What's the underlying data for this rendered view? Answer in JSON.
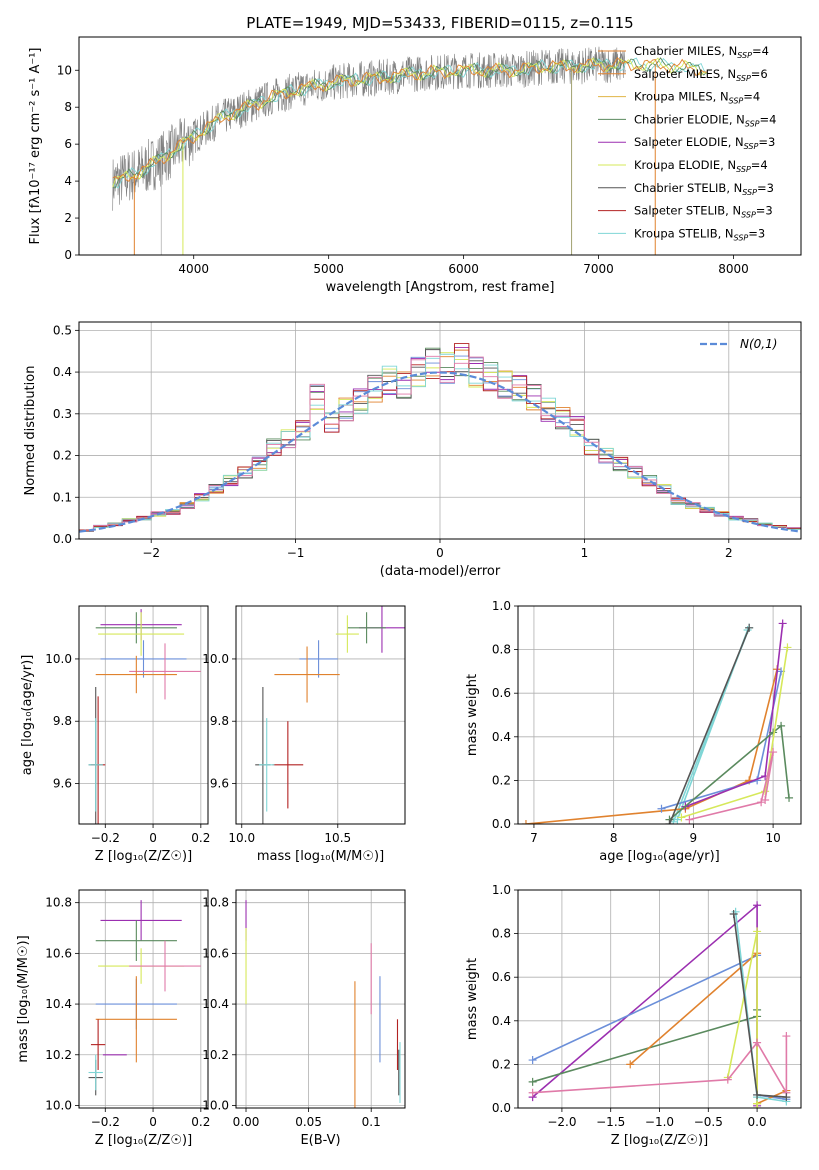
{
  "title": "PLATE=1949, MJD=53433, FIBERID=0115, z=0.115",
  "colors": {
    "Chabrier MILES": "#6b8fd9",
    "Salpeter MILES": "#e0822e",
    "Kroupa MILES": "#e0b446",
    "Chabrier ELODIE": "#5a8a5e",
    "Salpeter ELODIE": "#9b2fb0",
    "Kroupa ELODIE": "#d6e85a",
    "Chabrier STELIB": "#555555",
    "Salpeter STELIB": "#b22222",
    "Kroupa STELIB": "#7fd6d6",
    "Pink": "#e07aa8",
    "Data": "#808080"
  },
  "chart_data": [
    {
      "type": "line",
      "id": "spectrum",
      "title": "PLATE=1949, MJD=53433, FIBERID=0115, z=0.115",
      "xlabel": "wavelength [Angstrom, rest frame]",
      "ylabel": "Flux [fλ10⁻¹⁷ erg cm⁻² s⁻¹ A⁻¹]",
      "xlim": [
        3150,
        8500
      ],
      "ylim": [
        0,
        11.8
      ],
      "xticks": [
        4000,
        5000,
        6000,
        7000,
        8000
      ],
      "yticks": [
        0,
        2,
        4,
        6,
        8,
        10
      ],
      "legend": "top-right",
      "series": [
        {
          "name": "Chabrier MILES, N_SSP=4",
          "n": "4"
        },
        {
          "name": "Salpeter MILES, N_SSP=6",
          "n": "6"
        },
        {
          "name": "Kroupa MILES, N_SSP=4",
          "n": "4"
        },
        {
          "name": "Chabrier ELODIE, N_SSP=4",
          "n": "4"
        },
        {
          "name": "Salpeter ELODIE, N_SSP=3",
          "n": "3"
        },
        {
          "name": "Kroupa ELODIE, N_SSP=4",
          "n": "4"
        },
        {
          "name": "Chabrier STELIB, N_SSP=3",
          "n": "3"
        },
        {
          "name": "Salpeter STELIB, N_SSP=3",
          "n": "3"
        },
        {
          "name": "Kroupa STELIB, N_SSP=3",
          "n": "3"
        }
      ],
      "continuum": {
        "x": [
          3400,
          3600,
          3800,
          4000,
          4200,
          4400,
          4600,
          4800,
          5000,
          5200,
          5400,
          5600,
          5800,
          6000,
          6200,
          6400,
          6600,
          6800,
          7000,
          7200,
          7400,
          7600,
          7800
        ],
        "y": [
          3.9,
          4.5,
          5.4,
          6.4,
          7.4,
          8.0,
          8.6,
          9.0,
          9.3,
          9.5,
          9.6,
          9.8,
          9.9,
          10.0,
          10.0,
          10.0,
          10.2,
          10.2,
          10.3,
          10.3,
          10.3,
          10.2,
          10.0
        ]
      }
    },
    {
      "type": "line",
      "id": "residuals",
      "xlabel": "(data-model)/error",
      "ylabel": "Normed distribution",
      "xlim": [
        -2.5,
        2.5
      ],
      "ylim": [
        0,
        0.52
      ],
      "xticks": [
        -2,
        -1,
        0,
        1,
        2
      ],
      "yticks": [
        0.0,
        0.1,
        0.2,
        0.3,
        0.4,
        0.5
      ],
      "legend": "top-right",
      "legend_label": "N(0,1)",
      "hist_bins_center": [
        -2.45,
        -2.35,
        -2.25,
        -2.15,
        -2.05,
        -1.95,
        -1.85,
        -1.75,
        -1.65,
        -1.55,
        -1.45,
        -1.35,
        -1.25,
        -1.15,
        -1.05,
        -0.95,
        -0.85,
        -0.75,
        -0.65,
        -0.55,
        -0.45,
        -0.35,
        -0.25,
        -0.15,
        -0.05,
        0.05,
        0.15,
        0.25,
        0.35,
        0.45,
        0.55,
        0.65,
        0.75,
        0.85,
        0.95,
        1.05,
        1.15,
        1.25,
        1.35,
        1.45,
        1.55,
        1.65,
        1.75,
        1.85,
        1.95,
        2.05,
        2.15,
        2.25,
        2.35,
        2.45
      ],
      "hist_values": [
        0.02,
        0.03,
        0.035,
        0.045,
        0.05,
        0.06,
        0.065,
        0.08,
        0.1,
        0.12,
        0.14,
        0.16,
        0.18,
        0.22,
        0.24,
        0.26,
        0.34,
        0.28,
        0.31,
        0.33,
        0.36,
        0.38,
        0.37,
        0.4,
        0.42,
        0.41,
        0.43,
        0.4,
        0.39,
        0.37,
        0.36,
        0.34,
        0.31,
        0.29,
        0.27,
        0.22,
        0.2,
        0.18,
        0.16,
        0.14,
        0.12,
        0.09,
        0.08,
        0.07,
        0.06,
        0.05,
        0.045,
        0.035,
        0.03,
        0.025
      ]
    },
    {
      "type": "scatter",
      "id": "age-Z",
      "xlabel": "Z [log₁₀(Z/Z☉)]",
      "ylabel": "age  [log₁₀(age/yr)]",
      "xlim": [
        -0.31,
        0.23
      ],
      "ylim": [
        9.47,
        10.17
      ],
      "xticks": [
        -0.2,
        0.0,
        0.2
      ],
      "yticks": [
        9.6,
        9.8,
        10.0
      ],
      "errorbars": [
        {
          "x": -0.05,
          "y": 10.11,
          "xerr": 0.17,
          "yerr": 0.05,
          "color": "Salpeter ELODIE"
        },
        {
          "x": -0.07,
          "y": 10.1,
          "xerr": 0.17,
          "yerr": 0.05,
          "color": "Chabrier ELODIE"
        },
        {
          "x": -0.05,
          "y": 10.08,
          "xerr": 0.18,
          "yerr": 0.07,
          "color": "Kroupa ELODIE"
        },
        {
          "x": -0.04,
          "y": 10.0,
          "xerr": 0.18,
          "yerr": 0.06,
          "color": "Chabrier MILES"
        },
        {
          "x": 0.05,
          "y": 9.96,
          "xerr": 0.15,
          "yerr": 0.09,
          "color": "Pink"
        },
        {
          "x": -0.07,
          "y": 9.95,
          "xerr": 0.17,
          "yerr": 0.06,
          "color": "Salpeter MILES"
        },
        {
          "x": -0.24,
          "y": 9.66,
          "xerr": 0.03,
          "yerr": 0.25,
          "color": "Chabrier STELIB"
        },
        {
          "x": -0.23,
          "y": 9.66,
          "xerr": 0.03,
          "yerr": 0.22,
          "color": "Salpeter STELIB"
        },
        {
          "x": -0.24,
          "y": 9.66,
          "xerr": 0.03,
          "yerr": 0.15,
          "color": "Kroupa STELIB"
        }
      ]
    },
    {
      "type": "scatter",
      "id": "age-mass",
      "xlabel": "mass [log₁₀(M/M☉)]",
      "ylabel": "",
      "xlim": [
        9.97,
        10.85
      ],
      "ylim": [
        9.47,
        10.17
      ],
      "xticks": [
        10.0,
        10.5
      ],
      "yticks": [
        9.6,
        9.8,
        10.0
      ],
      "errorbars": [
        {
          "x": 10.73,
          "y": 10.1,
          "xerr": 0.12,
          "yerr": 0.08,
          "color": "Salpeter ELODIE"
        },
        {
          "x": 10.65,
          "y": 10.1,
          "xerr": 0.1,
          "yerr": 0.05,
          "color": "Chabrier ELODIE"
        },
        {
          "x": 10.55,
          "y": 10.08,
          "xerr": 0.06,
          "yerr": 0.06,
          "color": "Kroupa ELODIE"
        },
        {
          "x": 10.4,
          "y": 10.0,
          "xerr": 0.1,
          "yerr": 0.06,
          "color": "Chabrier MILES"
        },
        {
          "x": 10.34,
          "y": 9.95,
          "xerr": 0.17,
          "yerr": 0.09,
          "color": "Salpeter MILES"
        },
        {
          "x": 10.11,
          "y": 9.66,
          "xerr": 0.04,
          "yerr": 0.25,
          "color": "Chabrier STELIB"
        },
        {
          "x": 10.24,
          "y": 9.66,
          "xerr": 0.08,
          "yerr": 0.14,
          "color": "Salpeter STELIB"
        },
        {
          "x": 10.13,
          "y": 9.66,
          "xerr": 0.04,
          "yerr": 0.15,
          "color": "Kroupa STELIB"
        }
      ]
    },
    {
      "type": "line",
      "id": "weight-age",
      "xlabel": "age  [log₁₀(age/yr)]",
      "ylabel": "mass weight",
      "xlim": [
        6.8,
        10.35
      ],
      "ylim": [
        0,
        1.0
      ],
      "xticks": [
        7,
        8,
        9,
        10
      ],
      "yticks": [
        0.0,
        0.2,
        0.4,
        0.6,
        0.8,
        1.0
      ],
      "series": [
        {
          "color": "Kroupa STELIB",
          "x": [
            8.75,
            9.7,
            9.68,
            8.8
          ],
          "y": [
            0.01,
            0.9,
            0.89,
            0.02
          ]
        },
        {
          "color": "Salpeter MILES",
          "x": [
            6.9,
            8.9,
            9.7,
            10.05
          ],
          "y": [
            0.0,
            0.07,
            0.2,
            0.71
          ]
        },
        {
          "color": "Chabrier MILES",
          "x": [
            8.6,
            9.8,
            10.1
          ],
          "y": [
            0.07,
            0.2,
            0.7
          ]
        },
        {
          "color": "Salpeter ELODIE",
          "x": [
            8.9,
            9.9,
            10.12
          ],
          "y": [
            0.08,
            0.22,
            0.92
          ]
        },
        {
          "color": "Chabrier ELODIE",
          "x": [
            8.7,
            10.0,
            10.1,
            10.2
          ],
          "y": [
            0.02,
            0.42,
            0.45,
            0.12
          ]
        },
        {
          "color": "Kroupa ELODIE",
          "x": [
            8.85,
            9.9,
            10.18
          ],
          "y": [
            0.03,
            0.15,
            0.81
          ]
        },
        {
          "color": "Pink",
          "x": [
            8.95,
            9.85,
            10.0,
            9.9
          ],
          "y": [
            0.02,
            0.1,
            0.33,
            0.11
          ]
        },
        {
          "color": "Chabrier STELIB",
          "x": [
            8.7,
            9.7
          ],
          "y": [
            0.0,
            0.9
          ]
        }
      ]
    },
    {
      "type": "scatter",
      "id": "mass-Z",
      "xlabel": "Z [log₁₀(Z/Z☉)]",
      "ylabel": "mass [log₁₀(M/M☉)]",
      "xlim": [
        -0.31,
        0.23
      ],
      "ylim": [
        9.99,
        10.85
      ],
      "xticks": [
        -0.2,
        0.0,
        0.2
      ],
      "yticks": [
        10.0,
        10.2,
        10.4,
        10.6,
        10.8
      ],
      "errorbars": [
        {
          "x": -0.05,
          "y": 10.73,
          "xerr": 0.17,
          "yerr": 0.08,
          "color": "Salpeter ELODIE"
        },
        {
          "x": -0.07,
          "y": 10.65,
          "xerr": 0.17,
          "yerr": 0.08,
          "color": "Chabrier ELODIE"
        },
        {
          "x": -0.05,
          "y": 10.55,
          "xerr": 0.18,
          "yerr": 0.07,
          "color": "Kroupa ELODIE"
        },
        {
          "x": 0.05,
          "y": 10.55,
          "xerr": 0.15,
          "yerr": 0.1,
          "color": "Pink"
        },
        {
          "x": -0.07,
          "y": 10.4,
          "xerr": 0.17,
          "yerr": 0.1,
          "color": "Chabrier MILES"
        },
        {
          "x": -0.07,
          "y": 10.34,
          "xerr": 0.17,
          "yerr": 0.17,
          "color": "Salpeter MILES"
        },
        {
          "x": -0.23,
          "y": 10.24,
          "xerr": 0.03,
          "yerr": 0.1,
          "color": "Salpeter STELIB"
        },
        {
          "x": -0.24,
          "y": 10.11,
          "xerr": 0.03,
          "yerr": 0.07,
          "color": "Chabrier STELIB"
        },
        {
          "x": -0.24,
          "y": 10.13,
          "xerr": 0.03,
          "yerr": 0.07,
          "color": "Kroupa STELIB"
        },
        {
          "x": -0.16,
          "y": 10.2,
          "xerr": 0.05,
          "yerr": 0.0,
          "color": "Salpeter ELODIE"
        }
      ]
    },
    {
      "type": "scatter",
      "id": "mass-EBV",
      "xlabel": "E(B-V)",
      "ylabel": "",
      "xlim": [
        -0.008,
        0.127
      ],
      "ylim": [
        9.99,
        10.85
      ],
      "xticks": [
        0.0,
        0.05,
        0.1
      ],
      "yticks": [
        10.0,
        10.2,
        10.4,
        10.6,
        10.8
      ],
      "errorbars": [
        {
          "x": 0.0,
          "y": 10.73,
          "xerr": 0,
          "yerr": 0.08,
          "color": "Salpeter ELODIE"
        },
        {
          "x": 0.0,
          "y": 10.55,
          "xerr": 0,
          "yerr": 0.15,
          "color": "Kroupa ELODIE"
        },
        {
          "x": 0.087,
          "y": 10.2,
          "xerr": 0,
          "yerr": 0.29,
          "color": "Salpeter MILES"
        },
        {
          "x": 0.1,
          "y": 10.5,
          "xerr": 0,
          "yerr": 0.14,
          "color": "Pink"
        },
        {
          "x": 0.107,
          "y": 10.34,
          "xerr": 0,
          "yerr": 0.17,
          "color": "Chabrier MILES"
        },
        {
          "x": 0.121,
          "y": 10.24,
          "xerr": 0,
          "yerr": 0.1,
          "color": "Salpeter STELIB"
        },
        {
          "x": 0.122,
          "y": 10.13,
          "xerr": 0,
          "yerr": 0.09,
          "color": "Chabrier STELIB"
        },
        {
          "x": 0.123,
          "y": 10.13,
          "xerr": 0,
          "yerr": 0.12,
          "color": "Kroupa STELIB"
        }
      ]
    },
    {
      "type": "line",
      "id": "weight-Z",
      "xlabel": "Z [log₁₀(Z/Z☉)]",
      "ylabel": "mass weight",
      "xlim": [
        -2.45,
        0.45
      ],
      "ylim": [
        0,
        1.0
      ],
      "xticks": [
        -2.0,
        -1.5,
        -1.0,
        -0.5,
        0.0
      ],
      "yticks": [
        0.0,
        0.2,
        0.4,
        0.6,
        0.8,
        1.0
      ],
      "series": [
        {
          "color": "Salpeter ELODIE",
          "x": [
            -2.3,
            0.0,
            0.0
          ],
          "y": [
            0.05,
            0.93,
            0.01
          ]
        },
        {
          "color": "Chabrier MILES",
          "x": [
            -2.3,
            0.0,
            0.0,
            0.3
          ],
          "y": [
            0.22,
            0.7,
            0.06,
            0.04
          ]
        },
        {
          "color": "Chabrier ELODIE",
          "x": [
            -2.3,
            0.0,
            0.0
          ],
          "y": [
            0.12,
            0.42,
            0.45
          ]
        },
        {
          "color": "Salpeter MILES",
          "x": [
            -1.3,
            0.0,
            0.0,
            0.3
          ],
          "y": [
            0.2,
            0.71,
            0.02,
            0.08
          ]
        },
        {
          "color": "Kroupa ELODIE",
          "x": [
            -0.3,
            0.0,
            0.0,
            0.0
          ],
          "y": [
            0.14,
            0.81,
            0.02,
            0.0
          ]
        },
        {
          "color": "Pink",
          "x": [
            -2.3,
            -0.3,
            0.0,
            0.3,
            0.3
          ],
          "y": [
            0.07,
            0.13,
            0.3,
            0.07,
            0.33
          ]
        },
        {
          "color": "Kroupa STELIB",
          "x": [
            -0.22,
            0.0,
            0.3
          ],
          "y": [
            0.9,
            0.05,
            0.03
          ]
        },
        {
          "color": "Chabrier STELIB",
          "x": [
            -0.24,
            0.0,
            0.3
          ],
          "y": [
            0.89,
            0.06,
            0.05
          ]
        }
      ]
    }
  ]
}
